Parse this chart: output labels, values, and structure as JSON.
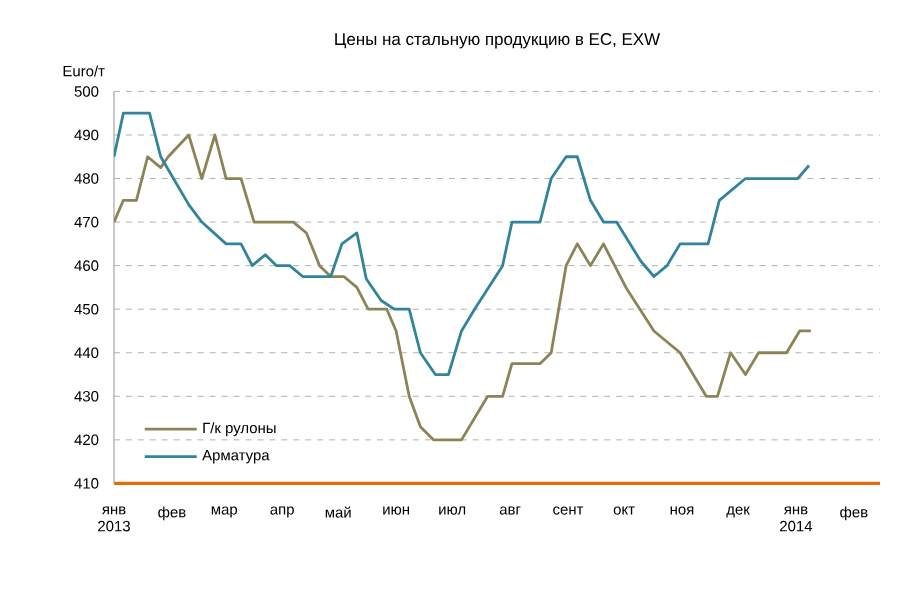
{
  "chart_data": {
    "type": "line",
    "title": "Цены на стальную продукцию в ЕС, EXW",
    "ylabel": "Euro/т",
    "xlim": [
      "2013-01-01",
      "2014-02-15"
    ],
    "ylim": [
      410,
      500
    ],
    "yticks": [
      410,
      420,
      430,
      440,
      450,
      460,
      470,
      480,
      490,
      500
    ],
    "xticks": [
      {
        "value": "2013-01-01",
        "label": "янв 2013"
      },
      {
        "value": "2013-02-01",
        "label": "фев"
      },
      {
        "value": "2013-03-01",
        "label": "мар"
      },
      {
        "value": "2013-04-01",
        "label": "апр"
      },
      {
        "value": "2013-05-01",
        "label": "май"
      },
      {
        "value": "2013-06-01",
        "label": "июн"
      },
      {
        "value": "2013-07-01",
        "label": "июл"
      },
      {
        "value": "2013-08-01",
        "label": "авг"
      },
      {
        "value": "2013-09-01",
        "label": "сент"
      },
      {
        "value": "2013-10-01",
        "label": "окт"
      },
      {
        "value": "2013-11-01",
        "label": "ноя"
      },
      {
        "value": "2013-12-01",
        "label": "дек"
      },
      {
        "value": "2014-01-01",
        "label": "янв 2014"
      },
      {
        "value": "2014-02-01",
        "label": "фев"
      }
    ],
    "grid": "y",
    "legend": "bottom left",
    "series": [
      {
        "name": "Г/к рулоны",
        "color": "#8c8457",
        "x": [
          "2013-01-01",
          "2013-01-06",
          "2013-01-13",
          "2013-01-19",
          "2013-01-26",
          "2013-01-30",
          "2013-02-10",
          "2013-02-17",
          "2013-02-24",
          "2013-03-02",
          "2013-03-10",
          "2013-03-17",
          "2013-04-07",
          "2013-04-14",
          "2013-04-21",
          "2013-04-27",
          "2013-05-04",
          "2013-05-11",
          "2013-05-17",
          "2013-05-27",
          "2013-06-01",
          "2013-06-08",
          "2013-06-14",
          "2013-06-21",
          "2013-07-06",
          "2013-07-20",
          "2013-07-28",
          "2013-08-02",
          "2013-08-17",
          "2013-08-23",
          "2013-08-31",
          "2013-09-06",
          "2013-09-13",
          "2013-09-20",
          "2013-10-02",
          "2013-10-17",
          "2013-10-24",
          "2013-10-31",
          "2013-11-14",
          "2013-11-20",
          "2013-11-27",
          "2013-12-05",
          "2013-12-12",
          "2013-12-27",
          "2014-01-03",
          "2014-01-09"
        ],
        "values": [
          470,
          475,
          475,
          485,
          482.5,
          485,
          490,
          480,
          490,
          480,
          480,
          470,
          470,
          467.5,
          460,
          457.5,
          457.5,
          455,
          450,
          450,
          445,
          430,
          423,
          420,
          420,
          430,
          430,
          437.5,
          437.5,
          440,
          460,
          465,
          460,
          465,
          455,
          445,
          442.5,
          440,
          430,
          430,
          440,
          435,
          440,
          440,
          445,
          445
        ]
      },
      {
        "name": "Арматура",
        "color": "#31849b",
        "x": [
          "2013-01-01",
          "2013-01-06",
          "2013-01-20",
          "2013-01-26",
          "2013-02-10",
          "2013-02-17",
          "2013-03-02",
          "2013-03-10",
          "2013-03-16",
          "2013-03-23",
          "2013-03-29",
          "2013-04-05",
          "2013-04-12",
          "2013-04-27",
          "2013-05-03",
          "2013-05-11",
          "2013-05-16",
          "2013-05-24",
          "2013-05-31",
          "2013-06-08",
          "2013-06-14",
          "2013-06-22",
          "2013-06-29",
          "2013-07-06",
          "2013-07-13",
          "2013-07-28",
          "2013-08-02",
          "2013-08-17",
          "2013-08-23",
          "2013-08-31",
          "2013-09-06",
          "2013-09-13",
          "2013-09-20",
          "2013-09-27",
          "2013-10-10",
          "2013-10-17",
          "2013-10-24",
          "2013-10-31",
          "2013-11-15",
          "2013-11-21",
          "2013-12-05",
          "2014-01-02",
          "2014-01-08"
        ],
        "values": [
          485,
          495,
          495,
          485,
          474,
          470,
          465,
          465,
          460,
          462.5,
          460,
          460,
          457.5,
          457.5,
          465,
          467.5,
          457,
          452,
          450,
          450,
          440,
          435,
          435,
          445,
          450,
          460,
          470,
          470,
          480,
          485,
          485,
          475,
          470,
          470,
          461,
          457.5,
          460,
          465,
          465,
          475,
          480,
          480,
          483
        ]
      }
    ]
  }
}
